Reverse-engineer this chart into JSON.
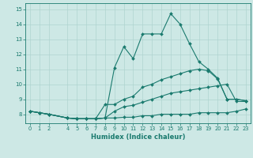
{
  "xlabel": "Humidex (Indice chaleur)",
  "xlim": [
    -0.5,
    23.5
  ],
  "ylim": [
    7.4,
    15.4
  ],
  "yticks": [
    8,
    9,
    10,
    11,
    12,
    13,
    14,
    15
  ],
  "xticks": [
    0,
    1,
    2,
    4,
    5,
    6,
    7,
    8,
    9,
    10,
    11,
    12,
    13,
    14,
    15,
    16,
    17,
    18,
    19,
    20,
    21,
    22,
    23
  ],
  "bg_color": "#cde8e5",
  "grid_color": "#afd4d0",
  "line_color": "#1a7a6e",
  "series": [
    {
      "x": [
        0,
        1,
        2,
        4,
        5,
        6,
        7,
        8,
        9,
        10,
        11,
        12,
        13,
        14,
        15,
        16,
        17,
        18,
        19,
        20,
        21,
        22,
        23
      ],
      "y": [
        8.2,
        8.1,
        8.0,
        7.75,
        7.7,
        7.7,
        7.7,
        7.75,
        7.75,
        7.8,
        7.8,
        7.9,
        7.9,
        8.0,
        8.0,
        8.0,
        8.0,
        8.1,
        8.1,
        8.1,
        8.1,
        8.2,
        8.35
      ]
    },
    {
      "x": [
        0,
        1,
        2,
        4,
        5,
        6,
        7,
        8,
        9,
        10,
        11,
        12,
        13,
        14,
        15,
        16,
        17,
        18,
        19,
        20,
        21,
        22,
        23
      ],
      "y": [
        8.2,
        8.1,
        8.0,
        7.75,
        7.7,
        7.7,
        7.7,
        7.75,
        8.2,
        8.5,
        8.6,
        8.8,
        9.0,
        9.2,
        9.4,
        9.5,
        9.6,
        9.7,
        9.8,
        9.9,
        10.0,
        8.85,
        8.85
      ]
    },
    {
      "x": [
        0,
        1,
        2,
        4,
        5,
        6,
        7,
        8,
        9,
        10,
        11,
        12,
        13,
        14,
        15,
        16,
        17,
        18,
        19,
        20,
        21,
        22,
        23
      ],
      "y": [
        8.2,
        8.1,
        8.0,
        7.75,
        7.7,
        7.7,
        7.7,
        8.65,
        8.65,
        9.0,
        9.2,
        9.8,
        10.0,
        10.3,
        10.5,
        10.7,
        10.9,
        11.0,
        10.9,
        10.35,
        9.0,
        9.0,
        8.9
      ]
    },
    {
      "x": [
        0,
        1,
        2,
        4,
        5,
        6,
        7,
        8,
        9,
        10,
        11,
        12,
        13,
        14,
        15,
        16,
        17,
        18,
        19,
        20,
        21,
        22,
        23
      ],
      "y": [
        8.2,
        8.1,
        8.0,
        7.75,
        7.7,
        7.7,
        7.7,
        7.75,
        11.1,
        12.5,
        11.7,
        13.35,
        13.35,
        13.35,
        14.7,
        14.0,
        12.7,
        11.5,
        11.0,
        10.4,
        9.0,
        9.0,
        8.9
      ]
    }
  ]
}
